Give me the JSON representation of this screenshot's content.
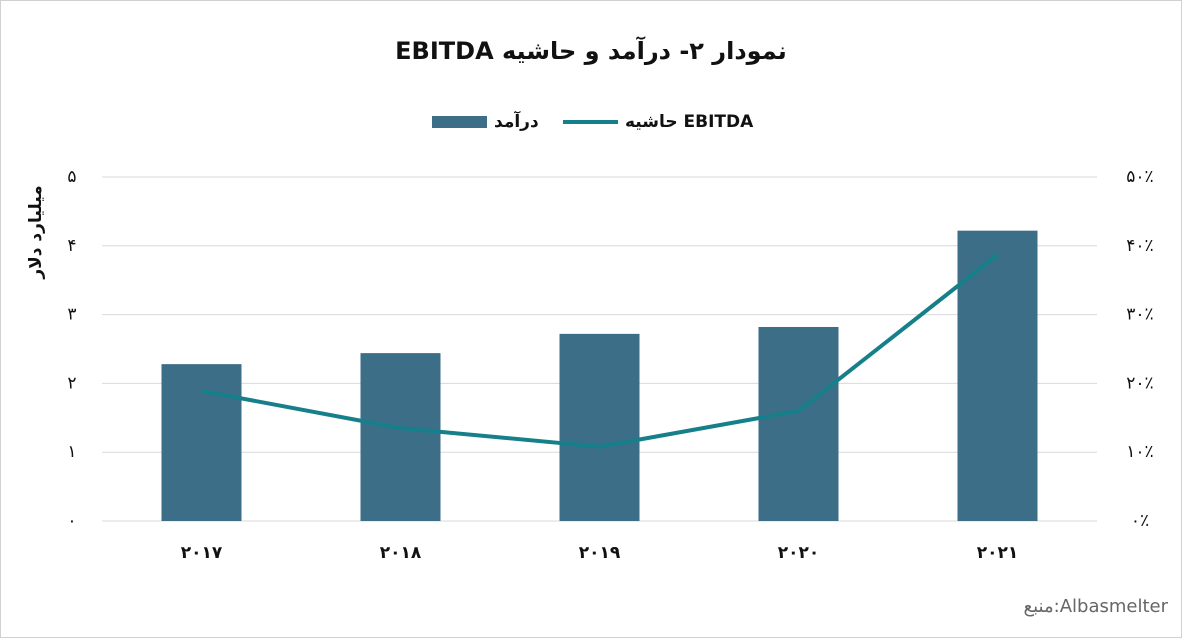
{
  "chart_data": {
    "type": "bar",
    "title": "نمودار ۲- درآمد و حاشیه EBITDA",
    "y_label": "میلیارد دلار",
    "source": "منبع:Albasmelter",
    "categories": [
      "۲۰۱۷",
      "۲۰۱۸",
      "۲۰۱۹",
      "۲۰۲۰",
      "۲۰۲۱"
    ],
    "series": [
      {
        "name": "درآمد",
        "type": "bar",
        "color": "#3d6e87",
        "values": [
          2.28,
          2.44,
          2.72,
          2.82,
          4.22
        ]
      },
      {
        "name": "حاشیه EBITDA",
        "type": "line",
        "axis": "y2",
        "color": "#16808a",
        "values": [
          18.9,
          13.5,
          10.8,
          16.0,
          38.7
        ]
      }
    ],
    "ylim": [
      0,
      5
    ],
    "yticks": [
      {
        "value": 0,
        "label": "۰"
      },
      {
        "value": 1,
        "label": "۱"
      },
      {
        "value": 2,
        "label": "۲"
      },
      {
        "value": 3,
        "label": "۳"
      },
      {
        "value": 4,
        "label": "۴"
      },
      {
        "value": 5,
        "label": "۵"
      }
    ],
    "y2lim": [
      0,
      50
    ],
    "y2ticks": [
      {
        "value": 0,
        "label": "۰٪"
      },
      {
        "value": 10,
        "label": "۱۰٪"
      },
      {
        "value": 20,
        "label": "۲۰٪"
      },
      {
        "value": 30,
        "label": "۳۰٪"
      },
      {
        "value": 40,
        "label": "۴۰٪"
      },
      {
        "value": 50,
        "label": "۵۰٪"
      }
    ],
    "grid": true
  }
}
